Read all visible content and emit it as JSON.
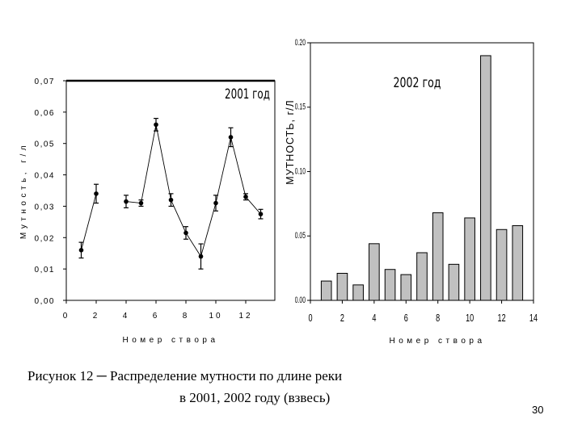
{
  "charts": [
    {
      "type": "line",
      "title": "2001 год",
      "xlabel": "Номер створа",
      "ylabel": "Мутность, г/л",
      "xlim": [
        0,
        14
      ],
      "ylim": [
        0,
        0.07
      ],
      "xticks": [
        "0",
        "2",
        "4",
        "6",
        "8",
        "10",
        "12"
      ],
      "yticks": [
        "0,00",
        "0,01",
        "0,02",
        "0,03",
        "0,04",
        "0,05",
        "0,06",
        "0,07"
      ],
      "segments": [
        [
          {
            "x": 1,
            "y": 0.016,
            "err": 0.0025
          },
          {
            "x": 2,
            "y": 0.034,
            "err": 0.003
          }
        ],
        [
          {
            "x": 4,
            "y": 0.0315,
            "err": 0.002
          },
          {
            "x": 5,
            "y": 0.031,
            "err": 0.001
          },
          {
            "x": 6,
            "y": 0.056,
            "err": 0.002
          },
          {
            "x": 7,
            "y": 0.032,
            "err": 0.002
          },
          {
            "x": 8,
            "y": 0.0215,
            "err": 0.002
          },
          {
            "x": 9,
            "y": 0.014,
            "err": 0.004
          },
          {
            "x": 10,
            "y": 0.031,
            "err": 0.0025
          },
          {
            "x": 11,
            "y": 0.052,
            "err": 0.003
          },
          {
            "x": 12,
            "y": 0.033,
            "err": 0.001
          },
          {
            "x": 13,
            "y": 0.0275,
            "err": 0.0015
          }
        ]
      ],
      "threshold": 0.07
    },
    {
      "type": "bar",
      "title": "2002 год",
      "xlabel": "Номер створа",
      "ylabel": "МУТНОСТЬ, г/Л",
      "xlim": [
        0,
        14
      ],
      "ylim": [
        0,
        0.2
      ],
      "xticks": [
        "0",
        "2",
        "4",
        "6",
        "8",
        "10",
        "12",
        "14"
      ],
      "yticks": [
        "0.00",
        "0.05",
        "0.10",
        "0.15",
        "0.20"
      ],
      "x": [
        1,
        2,
        3,
        4,
        5,
        6,
        7,
        8,
        9,
        10,
        11,
        12,
        13
      ],
      "values": [
        0.015,
        0.021,
        0.012,
        0.044,
        0.024,
        0.02,
        0.037,
        0.068,
        0.028,
        0.064,
        0.19,
        0.055,
        0.058
      ]
    }
  ],
  "caption": {
    "line1": "Рисунок 12 ─ Распределение мутности по длине реки",
    "line2": "в 2001, 2002 году (взвесь)"
  },
  "page_number": "30"
}
